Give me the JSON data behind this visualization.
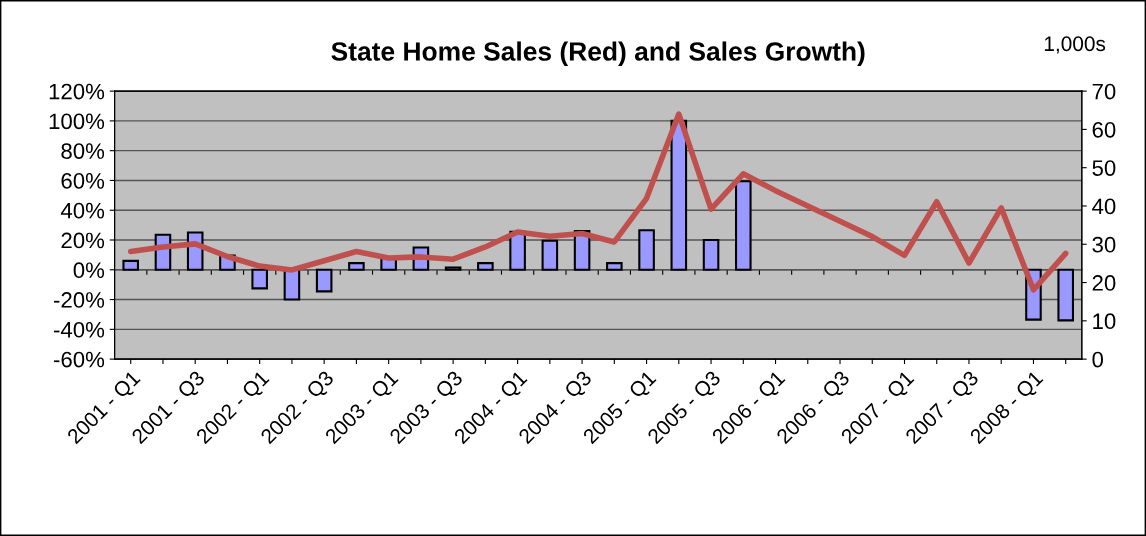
{
  "chart_data": {
    "type": "bar",
    "title": "State Home Sales (Red) and Sales Growth)",
    "y2label": "1,000s",
    "categories": [
      "2001 - Q1",
      null,
      "2001 - Q3",
      null,
      "2002 - Q1",
      null,
      "2002 - Q3",
      null,
      "2003 - Q1",
      null,
      "2003 - Q3",
      null,
      "2004 - Q1",
      null,
      "2004 - Q3",
      null,
      "2005 - Q1",
      null,
      "2005 - Q3",
      null,
      "2006 - Q1",
      null,
      "2006 - Q3",
      null,
      "2007 - Q1",
      null,
      "2007 - Q3",
      null,
      "2008 - Q1",
      null
    ],
    "series": [
      {
        "color": "#9999ff",
        "values": [
          6,
          23.5,
          25,
          9.5,
          -12.5,
          -20,
          -14.5,
          4.5,
          8,
          15,
          1.5,
          4.5,
          25.5,
          19.5,
          26,
          4.5,
          26.5,
          100,
          20,
          59.5,
          null,
          null,
          null,
          null,
          null,
          null,
          null,
          null,
          -33.5,
          -34
        ]
      },
      {
        "type": "line",
        "axis": "y2",
        "color": "#c0504d",
        "values": [
          28.1,
          29.3,
          30.1,
          26.8,
          24.3,
          23.3,
          25.7,
          28.1,
          26.4,
          26.7,
          26.1,
          29.3,
          33.2,
          32.1,
          32.8,
          30.6,
          42,
          64,
          39.2,
          48.4,
          44,
          40,
          36,
          32,
          27.1,
          41.1,
          25.1,
          39.5,
          18.1,
          27.6
        ]
      }
    ],
    "ylim": [
      -60,
      120
    ],
    "yticks": [
      {
        "value": -60,
        "label": "-60%"
      },
      {
        "value": -40,
        "label": "-40%"
      },
      {
        "value": -20,
        "label": "-20%"
      },
      {
        "value": 0,
        "label": "0%"
      },
      {
        "value": 20,
        "label": "20%"
      },
      {
        "value": 40,
        "label": "40%"
      },
      {
        "value": 60,
        "label": "60%"
      },
      {
        "value": 80,
        "label": "80%"
      },
      {
        "value": 100,
        "label": "100%"
      },
      {
        "value": 120,
        "label": "120%"
      }
    ],
    "y2lim": [
      0,
      70
    ],
    "y2ticks": [
      0,
      10,
      20,
      30,
      40,
      50,
      60,
      70
    ],
    "grid": "y",
    "marker": "none",
    "line_style": "solid"
  }
}
